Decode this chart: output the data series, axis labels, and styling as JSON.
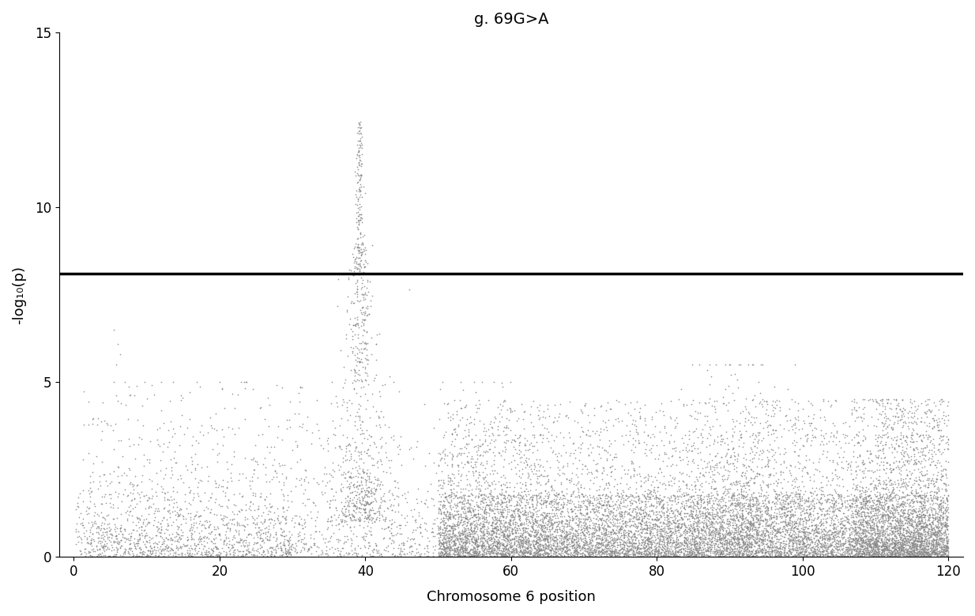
{
  "title": "g. 69G>A",
  "xlabel": "Chromosome 6 position",
  "ylabel": "-log₁₀(p)",
  "xlim": [
    -2,
    122
  ],
  "ylim": [
    0,
    15
  ],
  "xticks": [
    0,
    20,
    40,
    60,
    80,
    100,
    120
  ],
  "yticks": [
    0,
    5,
    10,
    15
  ],
  "threshold_y": 8.1,
  "threshold_color": "#000000",
  "threshold_lw": 2.5,
  "dot_color": "#888888",
  "dot_size": 1.5,
  "dot_alpha": 0.85,
  "background_color": "#ffffff",
  "title_fontsize": 14,
  "label_fontsize": 13,
  "tick_fontsize": 12,
  "seed": 42
}
